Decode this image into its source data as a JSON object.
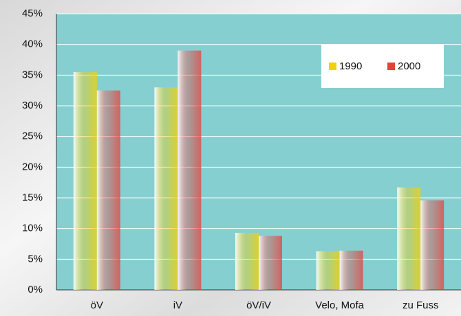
{
  "chart_data": {
    "type": "bar",
    "categories": [
      "öV",
      "iV",
      "öV/iV",
      "Velo, Mofa",
      "zu Fuss"
    ],
    "series": [
      {
        "name": "1990",
        "color": "#f5d000",
        "values": [
          35.5,
          33,
          9.3,
          6.3,
          16.7
        ]
      },
      {
        "name": "2000",
        "color": "#e8403a",
        "values": [
          32.5,
          39,
          8.8,
          6.4,
          14.6
        ]
      }
    ],
    "ylim": [
      0,
      45
    ],
    "yticks": [
      {
        "value": 0,
        "label": "0%"
      },
      {
        "value": 5,
        "label": "5%"
      },
      {
        "value": 10,
        "label": "10%"
      },
      {
        "value": 15,
        "label": "15%"
      },
      {
        "value": 20,
        "label": "20%"
      },
      {
        "value": 25,
        "label": "25%"
      },
      {
        "value": 30,
        "label": "30%"
      },
      {
        "value": 35,
        "label": "35%"
      },
      {
        "value": 40,
        "label": "40%"
      },
      {
        "value": 45,
        "label": "45%"
      }
    ],
    "grid": true
  }
}
